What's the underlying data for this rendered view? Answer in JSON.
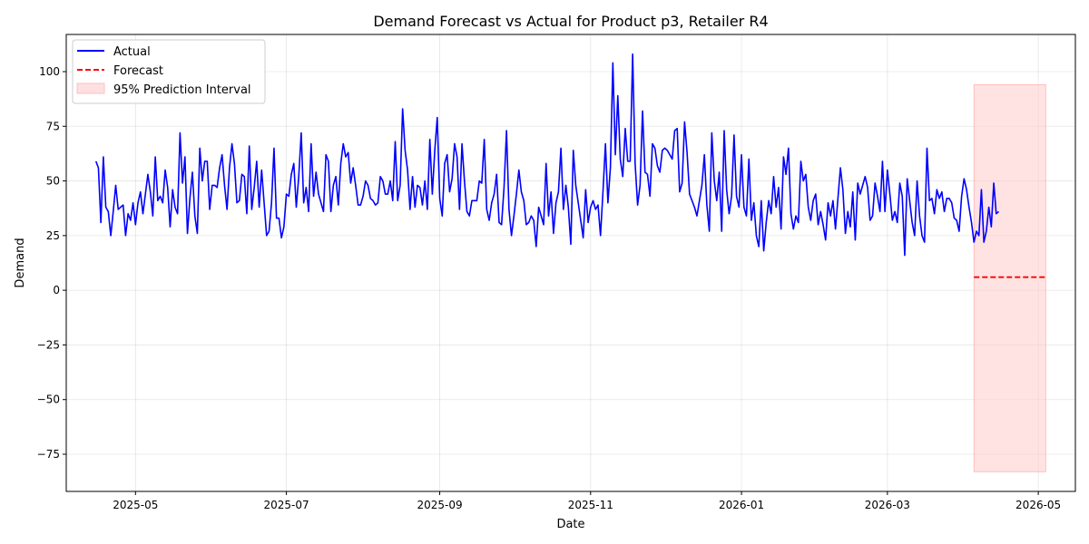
{
  "chart_data": {
    "type": "line",
    "title": "Demand Forecast vs Actual for Product p3, Retailer R4",
    "xlabel": "Date",
    "ylabel": "Demand",
    "xlim": [
      "2025-04-03",
      "2026-05-16"
    ],
    "ylim": [
      -92,
      117
    ],
    "grid": true,
    "legend_position": "top-left",
    "x_ticks": [
      {
        "date": "2025-05-01",
        "label": "2025-05"
      },
      {
        "date": "2025-07-01",
        "label": "2025-07"
      },
      {
        "date": "2025-09-01",
        "label": "2025-09"
      },
      {
        "date": "2025-11-01",
        "label": "2025-11"
      },
      {
        "date": "2026-01-01",
        "label": "2026-01"
      },
      {
        "date": "2026-03-01",
        "label": "2026-03"
      },
      {
        "date": "2026-05-01",
        "label": "2026-05"
      }
    ],
    "y_ticks": [
      {
        "value": 100,
        "label": "100"
      },
      {
        "value": 75,
        "label": "75"
      },
      {
        "value": 50,
        "label": "50"
      },
      {
        "value": 25,
        "label": "25"
      },
      {
        "value": 0,
        "label": "0"
      },
      {
        "value": -25,
        "label": "−25"
      },
      {
        "value": -50,
        "label": "−50"
      },
      {
        "value": -75,
        "label": "−75"
      }
    ],
    "series": [
      {
        "name": "Actual",
        "color": "#0000ff",
        "style": "solid",
        "start_date": "2025-04-15",
        "step_days": 1,
        "values": [
          59,
          56,
          31,
          61,
          38,
          36,
          25,
          36,
          48,
          37,
          38,
          39,
          25,
          35,
          32,
          40,
          30,
          40,
          45,
          35,
          44,
          53,
          45,
          34,
          61,
          41,
          43,
          40,
          55,
          47,
          29,
          46,
          38,
          35,
          72,
          49,
          61,
          26,
          42,
          54,
          34,
          26,
          65,
          50,
          59,
          59,
          37,
          48,
          48,
          47,
          56,
          62,
          48,
          37,
          56,
          67,
          58,
          40,
          41,
          53,
          52,
          35,
          66,
          37,
          47,
          59,
          38,
          55,
          40,
          25,
          27,
          40,
          65,
          33,
          33,
          24,
          29,
          44,
          43,
          53,
          58,
          38,
          52,
          72,
          40,
          47,
          36,
          67,
          43,
          54,
          44,
          40,
          36,
          62,
          59,
          36,
          48,
          52,
          39,
          58,
          67,
          61,
          63,
          49,
          56,
          48,
          39,
          39,
          43,
          50,
          48,
          42,
          41,
          39,
          40,
          52,
          50,
          44,
          44,
          50,
          41,
          68,
          41,
          48,
          83,
          64,
          55,
          37,
          52,
          38,
          48,
          47,
          39,
          50,
          37,
          69,
          44,
          64,
          79,
          42,
          34,
          58,
          62,
          45,
          51,
          67,
          61,
          37,
          67,
          50,
          36,
          34,
          41,
          41,
          41,
          50,
          49,
          69,
          37,
          32,
          40,
          44,
          53,
          31,
          30,
          47,
          73,
          37,
          25,
          34,
          44,
          55,
          45,
          41,
          30,
          31,
          34,
          32,
          20,
          38,
          34,
          30,
          58,
          34,
          45,
          26,
          40,
          45,
          65,
          37,
          48,
          38,
          21,
          64,
          48,
          40,
          32,
          24,
          46,
          31,
          38,
          41,
          37,
          39,
          25,
          45,
          67,
          40,
          56,
          104,
          62,
          89,
          60,
          52,
          74,
          59,
          59,
          108,
          58,
          39,
          48,
          82,
          54,
          53,
          43,
          67,
          65,
          57,
          54,
          64,
          65,
          64,
          62,
          60,
          73,
          74,
          45,
          49,
          77,
          63,
          44,
          41,
          38,
          34,
          41,
          48,
          62,
          39,
          27,
          72,
          50,
          41,
          54,
          27,
          73,
          46,
          35,
          43,
          71,
          43,
          38,
          62,
          38,
          34,
          60,
          32,
          40,
          25,
          20,
          41,
          18,
          31,
          41,
          35,
          52,
          38,
          47,
          28,
          61,
          53,
          65,
          35,
          28,
          34,
          31,
          59,
          50,
          53,
          38,
          32,
          41,
          44,
          30,
          36,
          30,
          23,
          40,
          34,
          41,
          28,
          42,
          56,
          46,
          26,
          36,
          29,
          45,
          23,
          49,
          44,
          48,
          52,
          47,
          32,
          34,
          49,
          43,
          36,
          59,
          36,
          55,
          44,
          32,
          36,
          31,
          49,
          43,
          16,
          51,
          41,
          31,
          25,
          50,
          34,
          25,
          22,
          65,
          41,
          42,
          35,
          46,
          42,
          45,
          36,
          42,
          42,
          40,
          33,
          32,
          27,
          43,
          51,
          46,
          38,
          31,
          22,
          27,
          25,
          46,
          22,
          27,
          38,
          29,
          49,
          35,
          36
        ]
      },
      {
        "name": "Forecast",
        "color": "#ff0000",
        "style": "dashed",
        "x": [
          "2026-04-05",
          "2026-05-04"
        ],
        "values": [
          6,
          6
        ]
      }
    ],
    "interval": {
      "name": "95% Prediction Interval",
      "color": "#ffcccc",
      "x": [
        "2026-04-05",
        "2026-05-04"
      ],
      "lower": -83,
      "upper": 94
    }
  }
}
